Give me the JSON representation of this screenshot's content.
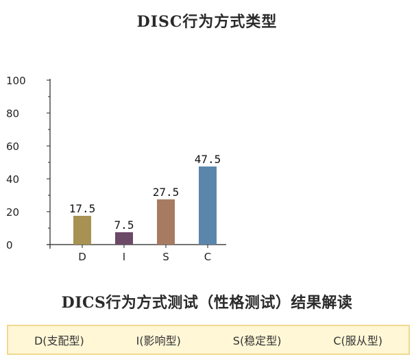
{
  "chart_data": {
    "type": "bar",
    "title": "DISC行为方式类型",
    "categories": [
      "D",
      "I",
      "S",
      "C"
    ],
    "values": [
      17.5,
      7.5,
      27.5,
      47.5
    ],
    "data_labels": [
      "17.5",
      "7.5",
      "27.5",
      "47.5"
    ],
    "colors": [
      "#a79253",
      "#6b4a66",
      "#a77b62",
      "#5b86ab"
    ],
    "ylim": [
      0,
      100
    ],
    "yticks": [
      "0",
      "20",
      "40",
      "60",
      "80",
      "100"
    ],
    "xlabel": "",
    "ylabel": "",
    "grid": false,
    "legend": "none"
  },
  "result": {
    "title": "DICS行为方式测试（性格测试）结果解读",
    "types": [
      "D(支配型)",
      "I(影响型)",
      "S(稳定型)",
      "C(服从型)"
    ]
  }
}
